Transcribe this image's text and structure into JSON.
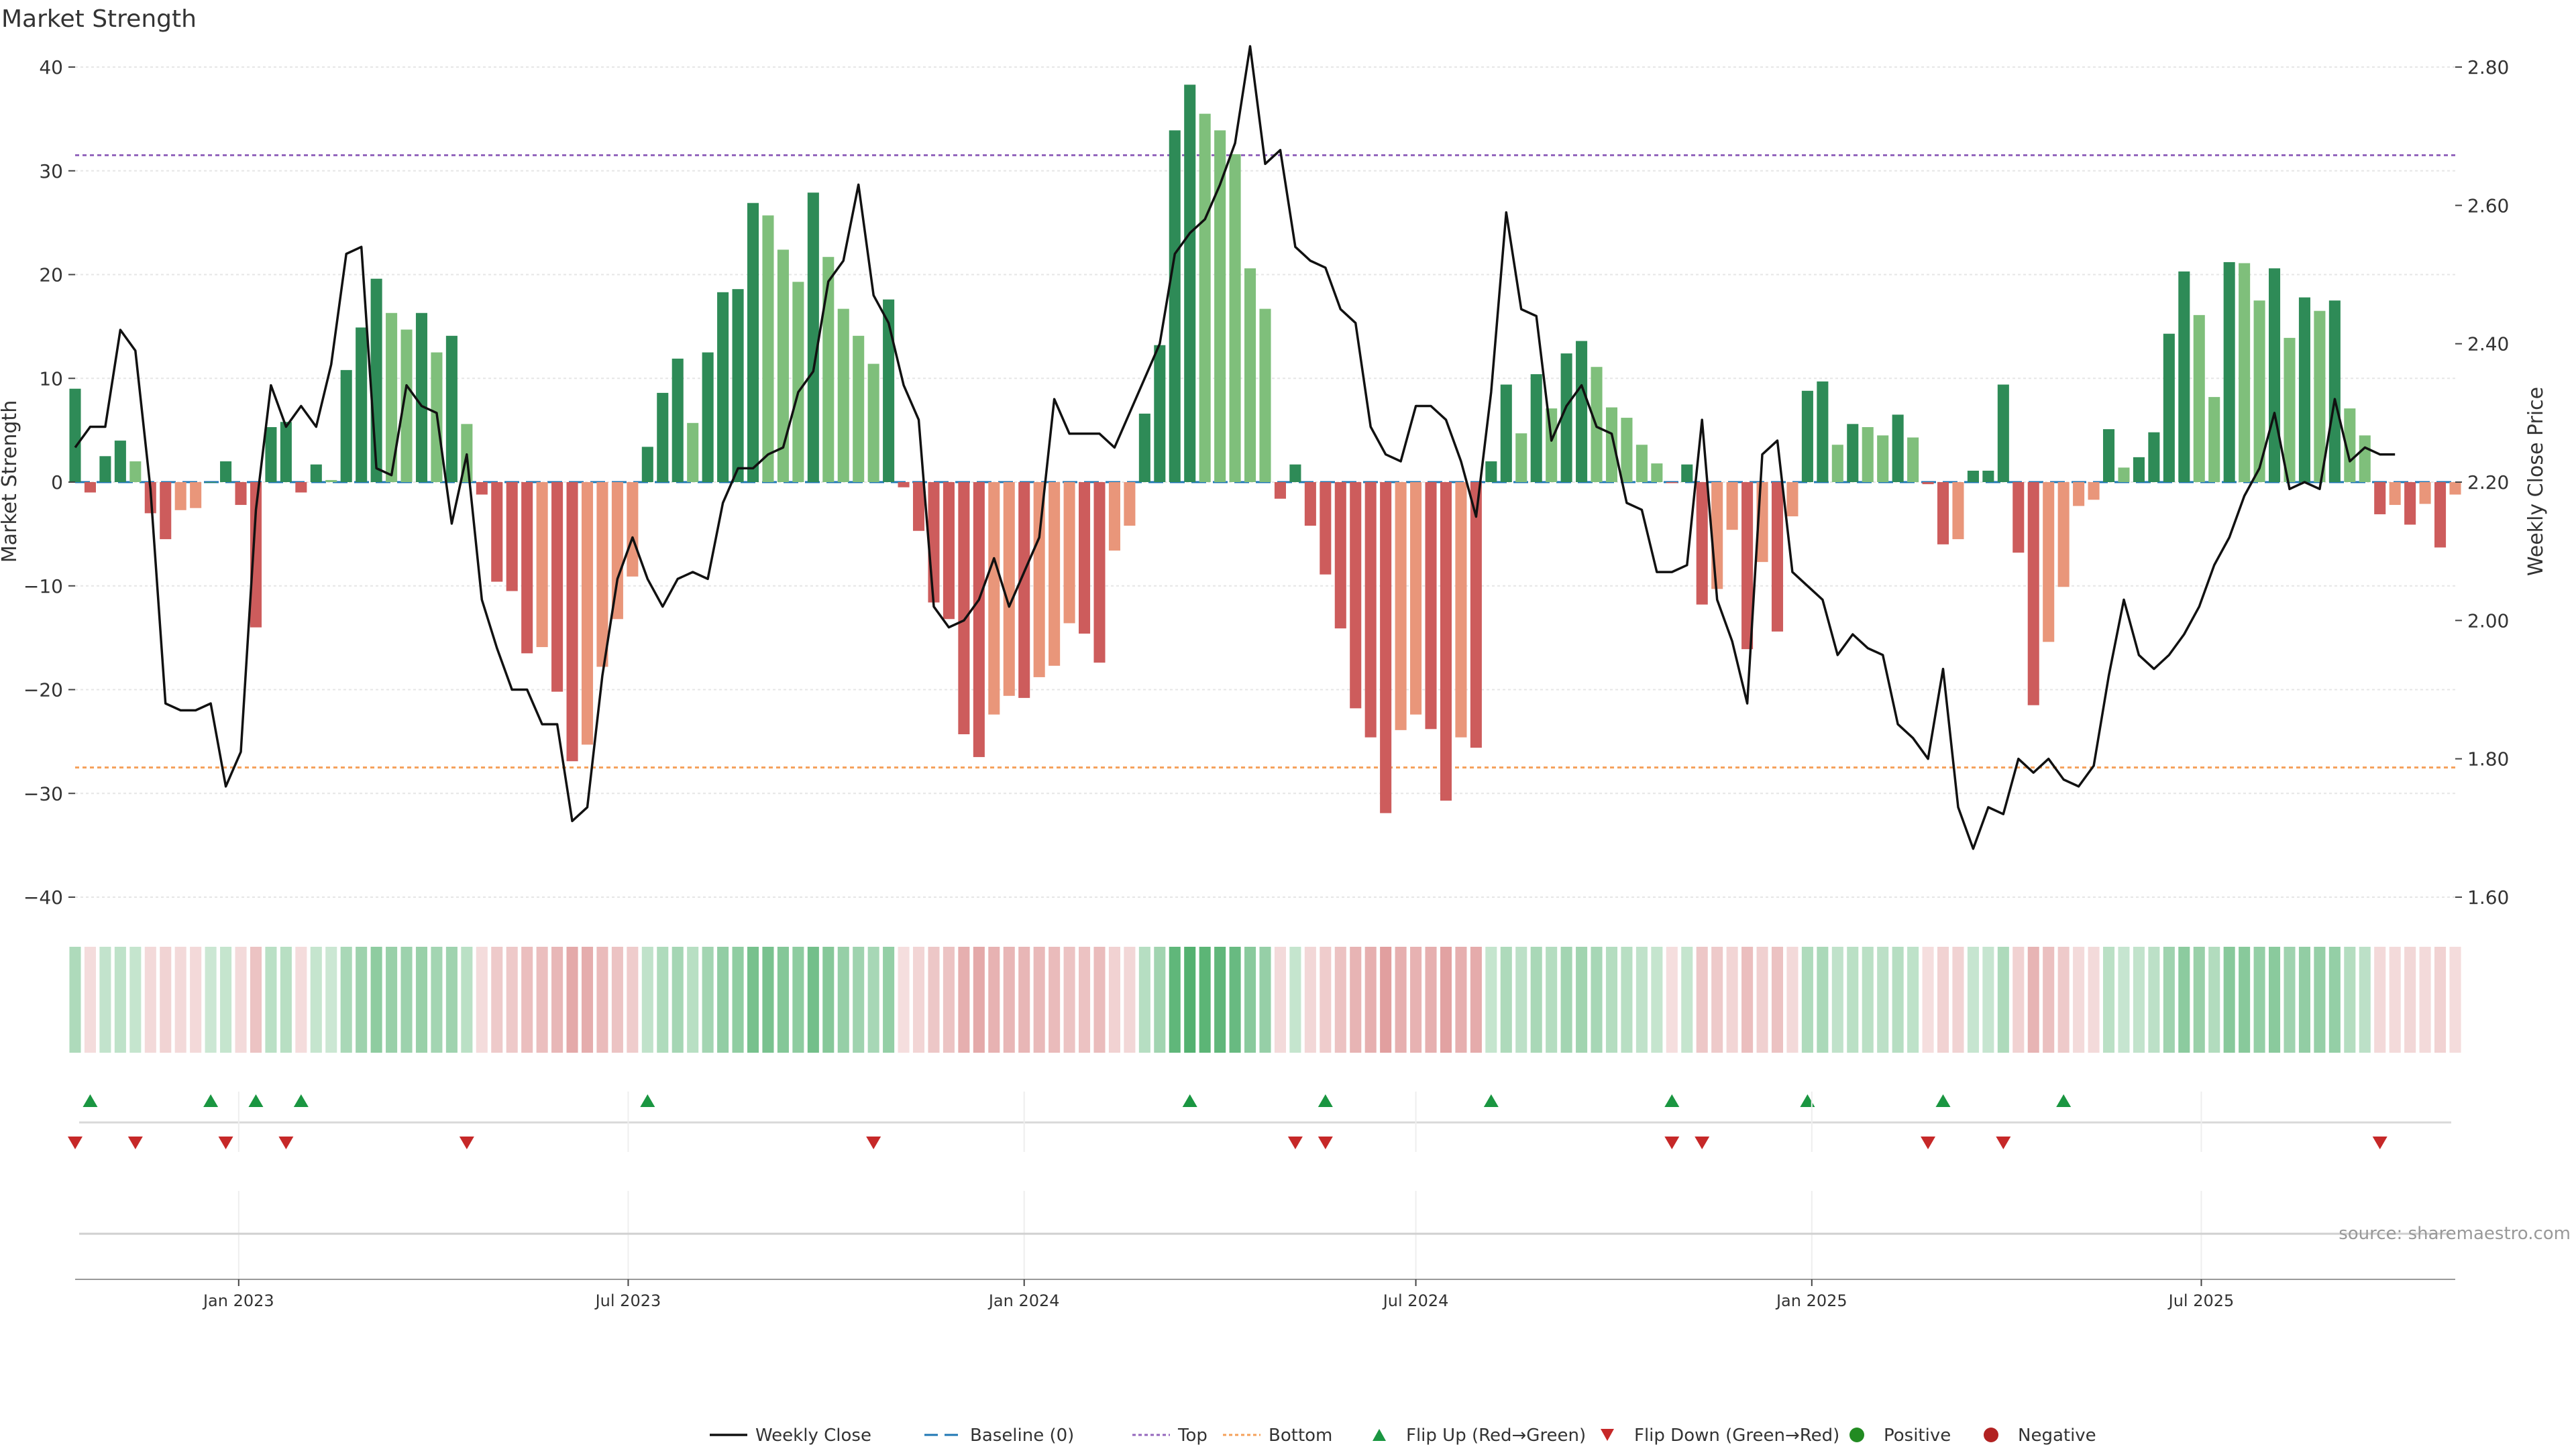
{
  "chart_data": {
    "type": "bar",
    "title": "Market Strength",
    "ylabel_left": "Market Strength",
    "ylabel_right": "Weekly Close Price",
    "ylim_left": [
      -40,
      40
    ],
    "ylim_right": [
      1.6,
      2.8
    ],
    "yticks_left": [
      40,
      30,
      20,
      10,
      0,
      -10,
      -20,
      -30,
      -40
    ],
    "ytick_labels_left": [
      "40",
      "30",
      "20",
      "10",
      "0",
      "−10",
      "−20",
      "−30",
      "−40"
    ],
    "yticks_right": [
      2.8,
      2.6,
      2.4,
      2.2,
      2.0,
      1.8,
      1.6
    ],
    "ytick_labels_right": [
      "2.80",
      "2.60",
      "2.40",
      "2.20",
      "2.00",
      "1.80",
      "1.60"
    ],
    "x_axis": {
      "start_date": "2022-10-17",
      "end_date": "2025-10-27",
      "ticks": [
        "2023-01-01",
        "2023-07-01",
        "2024-01-01",
        "2024-07-01",
        "2025-01-01",
        "2025-07-01"
      ],
      "tick_labels": [
        "Jan 2023",
        "Jul 2023",
        "Jan 2024",
        "Jul 2024",
        "Jan 2025",
        "Jul 2025"
      ]
    },
    "top_line": 31.5,
    "bottom_line": -27.5,
    "market_strength": [
      9,
      -1,
      2.5,
      4,
      2,
      -3,
      -5.5,
      -2.7,
      -2.5,
      0,
      2,
      -2.2,
      -14,
      5.3,
      5.8,
      -1,
      1.7,
      0.2,
      10.8,
      14.9,
      19.6,
      16.3,
      14.7,
      16.3,
      12.5,
      14.1,
      5.6,
      -1.2,
      -9.6,
      -10.5,
      -16.5,
      -15.9,
      -20.2,
      -26.9,
      -25.3,
      -17.8,
      -13.2,
      -9.1,
      3.4,
      8.6,
      11.9,
      5.7,
      12.5,
      18.3,
      18.6,
      26.9,
      25.7,
      22.4,
      19.3,
      27.9,
      21.7,
      16.7,
      14.1,
      11.4,
      17.6,
      -0.5,
      -4.7,
      -11.6,
      -13.2,
      -24.3,
      -26.5,
      -22.4,
      -20.6,
      -20.8,
      -18.8,
      -17.7,
      -13.6,
      -14.6,
      -17.4,
      -6.6,
      -4.2,
      6.6,
      13.2,
      33.9,
      38.3,
      35.5,
      33.9,
      31.6,
      20.6,
      16.7,
      -1.6,
      1.7,
      -4.2,
      -8.9,
      -14.1,
      -21.8,
      -24.6,
      -31.9,
      -23.9,
      -22.4,
      -23.8,
      -30.7,
      -24.6,
      -25.6,
      2,
      9.4,
      4.7,
      10.4,
      7.1,
      12.4,
      13.6,
      11.1,
      7.2,
      6.2,
      3.6,
      1.8,
      -0.1,
      1.7,
      -11.8,
      -10.3,
      -4.6,
      -16.1,
      -7.7,
      -14.4,
      -3.3,
      8.8,
      9.7,
      3.6,
      5.6,
      5.3,
      4.5,
      6.5,
      4.3,
      -0.2,
      -6,
      -5.5,
      1.1,
      1.1,
      9.4,
      -6.8,
      -21.5,
      -15.4,
      -10.1,
      -2.3,
      -1.7,
      5.1,
      1.4,
      2.4,
      4.8,
      14.3,
      20.3,
      16.1,
      8.2,
      21.2,
      21.1,
      17.5,
      20.6,
      13.9,
      17.8,
      16.5,
      17.5,
      7.1,
      4.5,
      -3.1,
      -2.2,
      -4.1,
      -2.1,
      -6.3,
      -1.2
    ],
    "weekly_close": [
      2.25,
      2.28,
      2.28,
      2.42,
      2.39,
      2.19,
      1.88,
      1.87,
      1.87,
      1.88,
      1.76,
      1.81,
      2.16,
      2.34,
      2.28,
      2.31,
      2.28,
      2.37,
      2.53,
      2.54,
      2.22,
      2.21,
      2.34,
      2.31,
      2.3,
      2.14,
      2.24,
      2.03,
      1.96,
      1.9,
      1.9,
      1.85,
      1.85,
      1.71,
      1.73,
      1.92,
      2.06,
      2.12,
      2.06,
      2.02,
      2.06,
      2.07,
      2.06,
      2.17,
      2.22,
      2.22,
      2.24,
      2.25,
      2.33,
      2.36,
      2.49,
      2.52,
      2.63,
      2.47,
      2.43,
      2.34,
      2.29,
      2.02,
      1.99,
      2.0,
      2.03,
      2.09,
      2.02,
      2.07,
      2.12,
      2.32,
      2.27,
      2.27,
      2.27,
      2.25,
      2.3,
      2.35,
      2.4,
      2.53,
      2.56,
      2.58,
      2.63,
      2.69,
      2.83,
      2.66,
      2.68,
      2.54,
      2.52,
      2.51,
      2.45,
      2.43,
      2.28,
      2.24,
      2.23,
      2.31,
      2.31,
      2.29,
      2.23,
      2.15,
      2.33,
      2.59,
      2.45,
      2.44,
      2.26,
      2.31,
      2.34,
      2.28,
      2.27,
      2.17,
      2.16,
      2.07,
      2.07,
      2.08,
      2.29,
      2.03,
      1.97,
      1.88,
      2.24,
      2.26,
      2.07,
      2.05,
      2.03,
      1.95,
      1.98,
      1.96,
      1.95,
      1.85,
      1.83,
      1.8,
      1.93,
      1.73,
      1.67,
      1.73,
      1.72,
      1.8,
      1.78,
      1.8,
      1.77,
      1.76,
      1.79,
      1.92,
      2.03,
      1.95,
      1.93,
      1.95,
      1.98,
      2.02,
      2.08,
      2.12,
      2.18,
      2.22,
      2.3,
      2.19,
      2.2,
      2.19,
      2.32,
      2.23,
      2.25,
      2.24,
      2.24
    ]
  },
  "flip_up_dates": [
    "2022-10-24",
    "2022-12-19",
    "2023-01-09",
    "2023-01-30",
    "2023-07-10",
    "2024-03-18",
    "2024-05-20",
    "2024-08-05",
    "2024-10-28",
    "2024-12-30",
    "2025-03-03",
    "2025-04-28"
  ],
  "flip_down_dates": [
    "2022-10-17",
    "2022-11-14",
    "2022-12-26",
    "2023-01-23",
    "2023-04-17",
    "2023-10-23",
    "2024-05-06",
    "2024-05-20",
    "2024-10-28",
    "2024-11-11",
    "2025-02-24",
    "2025-03-31",
    "2025-09-22"
  ],
  "colors": {
    "pos_dark": "#2e8b57",
    "pos_light": "#7fbf7b",
    "neg_dark": "#cd5c5c",
    "neg_light": "#e9967a",
    "top_line": "#9467bd",
    "bottom_line": "#f5a05a",
    "baseline": "#1f77b4",
    "flip_up": "#1a9641",
    "flip_down": "#c62828",
    "positive": "#228b22",
    "negative": "#b22222"
  },
  "source_text": "source: sharemaestro.com",
  "legend": [
    {
      "key": "weekly",
      "label": "Weekly Close"
    },
    {
      "key": "baseline",
      "label": "Baseline (0)"
    },
    {
      "key": "top",
      "label": "Top"
    },
    {
      "key": "bottom",
      "label": "Bottom"
    },
    {
      "key": "flipup",
      "label": "Flip Up (Red→Green)"
    },
    {
      "key": "flipdown",
      "label": "Flip Down (Green→Red)"
    },
    {
      "key": "positive",
      "label": "Positive"
    },
    {
      "key": "negative",
      "label": "Negative"
    }
  ]
}
